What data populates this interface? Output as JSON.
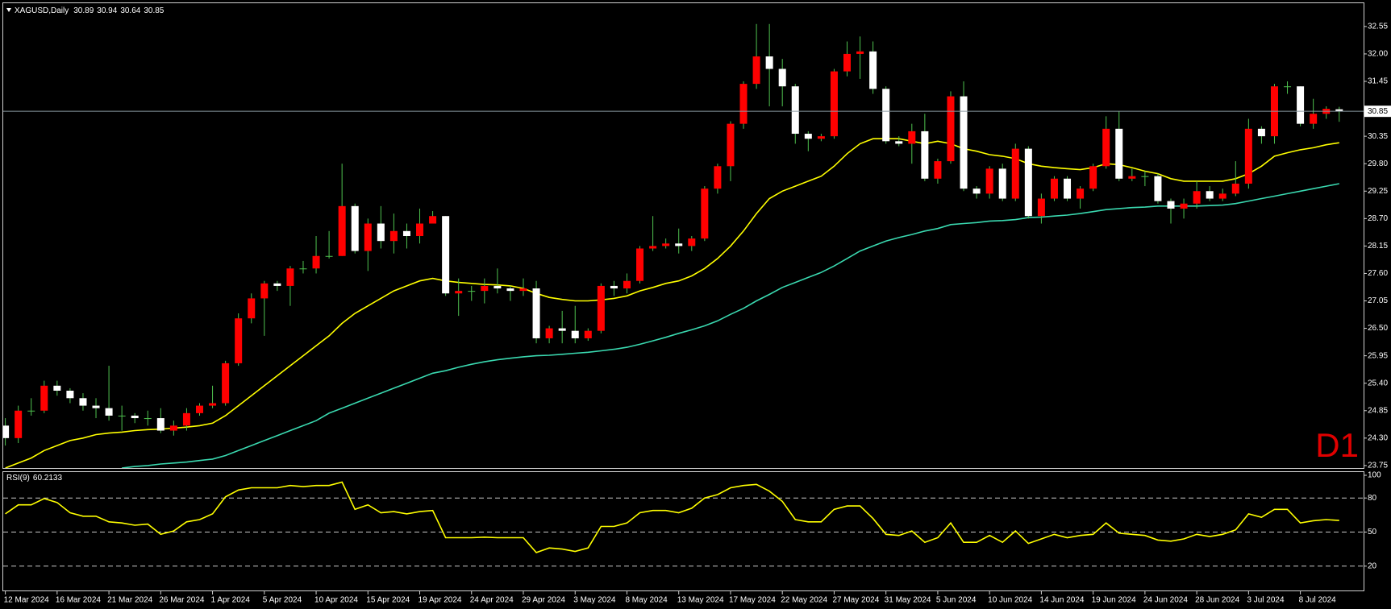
{
  "chart_data": [
    {
      "type": "candlestick",
      "title": "XAGUSD,Daily",
      "watermark": "D1",
      "categories": [
        "12 Mar 2024",
        null,
        null,
        null,
        "16 Mar 2024",
        null,
        null,
        null,
        "21 Mar 2024",
        null,
        null,
        null,
        "26 Mar 2024",
        null,
        null,
        null,
        "1 Apr 2024",
        null,
        null,
        null,
        "5 Apr 2024",
        null,
        null,
        null,
        "10 Apr 2024",
        null,
        null,
        null,
        "15 Apr 2024",
        null,
        null,
        null,
        "19 Apr 2024",
        null,
        null,
        null,
        "24 Apr 2024",
        null,
        null,
        null,
        "29 Apr 2024",
        null,
        null,
        null,
        "3 May 2024",
        null,
        null,
        null,
        "8 May 2024",
        null,
        null,
        null,
        "13 May 2024",
        null,
        null,
        null,
        "17 May 2024",
        null,
        null,
        null,
        "22 May 2024",
        null,
        null,
        null,
        "27 May 2024",
        null,
        null,
        null,
        "31 May 2024",
        null,
        null,
        null,
        "5 Jun 2024",
        null,
        null,
        null,
        "10 Jun 2024",
        null,
        null,
        null,
        "14 Jun 2024",
        null,
        null,
        null,
        "19 Jun 2024",
        null,
        null,
        null,
        "24 Jun 2024",
        null,
        null,
        null,
        "28 Jun 2024",
        null,
        null,
        null,
        "3 Jul 2024",
        null,
        null,
        null,
        "8 Jul 2024",
        null,
        null,
        null
      ],
      "open": [
        24.55,
        24.3,
        24.85,
        24.85,
        25.35,
        25.25,
        25.1,
        24.95,
        24.9,
        24.75,
        24.75,
        24.7,
        24.7,
        24.45,
        24.55,
        24.8,
        24.95,
        25.0,
        25.8,
        26.7,
        27.1,
        27.4,
        27.35,
        27.7,
        27.7,
        27.95,
        27.95,
        28.95,
        28.05,
        28.6,
        28.25,
        28.45,
        28.35,
        28.6,
        28.75,
        27.2,
        27.25,
        27.25,
        27.35,
        27.3,
        27.25,
        27.3,
        26.3,
        26.5,
        26.45,
        26.3,
        26.45,
        27.35,
        27.3,
        27.45,
        28.1,
        28.15,
        28.2,
        28.15,
        28.3,
        29.3,
        29.75,
        30.6,
        31.4,
        31.95,
        31.7,
        31.35,
        30.4,
        30.3,
        30.35,
        31.65,
        32.0,
        32.05,
        31.3,
        30.25,
        30.2,
        30.45,
        29.5,
        29.85,
        31.15,
        29.3,
        29.2,
        29.7,
        29.1,
        30.1,
        28.75,
        29.1,
        29.5,
        29.1,
        29.3,
        29.75,
        30.5,
        29.5,
        29.55,
        29.55,
        29.05,
        28.9,
        29.0,
        29.25,
        29.1,
        29.2,
        29.4,
        30.5,
        30.35,
        31.35,
        31.35,
        30.6,
        30.8,
        30.89
      ],
      "high": [
        24.7,
        24.95,
        25.1,
        25.45,
        25.45,
        25.3,
        25.2,
        25.1,
        25.75,
        24.95,
        24.8,
        24.85,
        24.9,
        24.65,
        24.9,
        25.0,
        25.35,
        25.85,
        26.8,
        27.2,
        27.45,
        27.45,
        27.75,
        27.85,
        28.35,
        28.45,
        29.8,
        29.0,
        28.7,
        28.95,
        28.8,
        28.6,
        28.9,
        28.85,
        28.75,
        27.5,
        27.35,
        27.5,
        27.7,
        27.35,
        27.5,
        27.45,
        26.55,
        26.85,
        26.95,
        26.5,
        27.4,
        27.45,
        27.6,
        28.15,
        28.75,
        28.3,
        28.5,
        28.35,
        29.35,
        29.8,
        30.65,
        31.45,
        32.6,
        32.6,
        31.9,
        31.4,
        30.45,
        30.4,
        31.7,
        32.25,
        32.35,
        32.25,
        31.35,
        30.35,
        30.6,
        30.8,
        29.9,
        31.25,
        31.45,
        29.35,
        29.75,
        29.8,
        30.2,
        30.15,
        29.2,
        29.55,
        29.55,
        29.35,
        29.8,
        30.75,
        30.85,
        29.7,
        29.65,
        29.6,
        29.1,
        29.1,
        29.45,
        29.35,
        29.3,
        29.85,
        30.7,
        30.55,
        31.4,
        31.45,
        31.35,
        31.1,
        30.95,
        30.94
      ],
      "low": [
        24.15,
        24.2,
        24.75,
        24.8,
        25.15,
        25.0,
        24.85,
        24.7,
        24.65,
        24.45,
        24.6,
        24.55,
        24.4,
        24.35,
        24.45,
        24.75,
        24.9,
        24.95,
        25.75,
        26.6,
        26.35,
        27.25,
        26.95,
        27.6,
        27.6,
        27.9,
        27.95,
        28.0,
        27.65,
        28.1,
        28.0,
        28.1,
        28.2,
        28.6,
        27.15,
        26.75,
        27.05,
        27.0,
        27.2,
        27.05,
        27.15,
        26.2,
        26.2,
        26.2,
        26.2,
        26.25,
        26.4,
        27.15,
        27.2,
        27.4,
        28.05,
        28.1,
        28.0,
        28.05,
        28.25,
        29.2,
        29.45,
        30.5,
        31.3,
        30.95,
        30.95,
        30.2,
        30.05,
        30.25,
        30.3,
        31.55,
        31.5,
        31.2,
        30.2,
        30.15,
        29.8,
        29.45,
        29.4,
        29.8,
        29.25,
        29.1,
        29.1,
        29.05,
        29.05,
        28.7,
        28.6,
        29.05,
        29.05,
        28.9,
        29.25,
        29.7,
        29.45,
        29.45,
        29.35,
        29.0,
        28.6,
        28.7,
        28.9,
        29.05,
        29.05,
        29.15,
        29.3,
        30.2,
        30.2,
        31.2,
        30.55,
        30.5,
        30.7,
        30.64
      ],
      "close": [
        24.3,
        24.85,
        24.85,
        25.35,
        25.25,
        25.1,
        24.95,
        24.9,
        24.75,
        24.75,
        24.7,
        24.7,
        24.45,
        24.55,
        24.8,
        24.95,
        25.0,
        25.8,
        26.7,
        27.1,
        27.4,
        27.35,
        27.7,
        27.7,
        27.95,
        27.95,
        28.95,
        28.05,
        28.6,
        28.25,
        28.45,
        28.35,
        28.6,
        28.75,
        27.2,
        27.25,
        27.25,
        27.35,
        27.3,
        27.25,
        27.3,
        26.3,
        26.5,
        26.45,
        26.3,
        26.45,
        27.35,
        27.3,
        27.45,
        28.1,
        28.15,
        28.2,
        28.15,
        28.3,
        29.3,
        29.75,
        30.6,
        31.4,
        31.95,
        31.7,
        31.35,
        30.4,
        30.3,
        30.35,
        31.65,
        32.0,
        32.05,
        31.3,
        30.25,
        30.2,
        30.45,
        29.5,
        29.85,
        31.15,
        29.3,
        29.2,
        29.7,
        29.1,
        30.1,
        28.75,
        29.1,
        29.5,
        29.1,
        29.3,
        29.75,
        30.5,
        29.5,
        29.55,
        29.55,
        29.05,
        28.9,
        29.0,
        29.25,
        29.1,
        29.2,
        29.4,
        30.5,
        30.35,
        31.35,
        31.35,
        30.6,
        30.8,
        30.9,
        30.85
      ],
      "up_color": "#ff0000",
      "down_color": "#ffffff",
      "wick_color": "#4fc24f",
      "series": [
        {
          "color": "#ffff00",
          "values": [
            23.7,
            23.8,
            23.9,
            24.05,
            24.15,
            24.25,
            24.3,
            24.37,
            24.4,
            24.42,
            24.45,
            24.47,
            24.48,
            24.5,
            24.52,
            24.55,
            24.6,
            24.75,
            24.95,
            25.15,
            25.35,
            25.55,
            25.75,
            25.95,
            26.15,
            26.35,
            26.6,
            26.8,
            26.95,
            27.1,
            27.25,
            27.35,
            27.45,
            27.5,
            27.45,
            27.42,
            27.4,
            27.38,
            27.37,
            27.35,
            27.3,
            27.2,
            27.12,
            27.08,
            27.05,
            27.05,
            27.07,
            27.1,
            27.15,
            27.25,
            27.32,
            27.4,
            27.45,
            27.55,
            27.7,
            27.9,
            28.15,
            28.45,
            28.8,
            29.1,
            29.25,
            29.35,
            29.45,
            29.55,
            29.75,
            30.0,
            30.2,
            30.3,
            30.3,
            30.3,
            30.25,
            30.2,
            30.25,
            30.2,
            30.1,
            30.05,
            29.98,
            29.95,
            29.9,
            29.8,
            29.75,
            29.72,
            29.7,
            29.68,
            29.72,
            29.8,
            29.78,
            29.72,
            29.65,
            29.6,
            29.5,
            29.45,
            29.45,
            29.45,
            29.45,
            29.5,
            29.6,
            29.75,
            29.95,
            30.02,
            30.08,
            30.12,
            30.18,
            30.22
          ]
        },
        {
          "color": "#3ad9b0",
          "values": [
            null,
            null,
            null,
            null,
            null,
            null,
            null,
            null,
            null,
            23.7,
            23.73,
            23.75,
            23.78,
            23.8,
            23.82,
            23.85,
            23.88,
            23.95,
            24.05,
            24.15,
            24.25,
            24.35,
            24.45,
            24.55,
            24.65,
            24.8,
            24.9,
            25.0,
            25.1,
            25.2,
            25.3,
            25.4,
            25.5,
            25.6,
            25.65,
            25.72,
            25.78,
            25.83,
            25.87,
            25.9,
            25.93,
            25.95,
            25.96,
            25.98,
            26.0,
            26.02,
            26.05,
            26.08,
            26.12,
            26.18,
            26.25,
            26.32,
            26.4,
            26.47,
            26.55,
            26.65,
            26.78,
            26.9,
            27.05,
            27.18,
            27.32,
            27.42,
            27.52,
            27.62,
            27.75,
            27.9,
            28.05,
            28.15,
            28.25,
            28.32,
            28.38,
            28.45,
            28.5,
            28.58,
            28.6,
            28.62,
            28.65,
            28.66,
            28.68,
            28.72,
            28.73,
            28.75,
            28.77,
            28.8,
            28.84,
            28.88,
            28.9,
            28.92,
            28.93,
            28.95,
            28.95,
            28.95,
            28.95,
            28.96,
            28.97,
            29.0,
            29.05,
            29.1,
            29.15,
            29.2,
            29.25,
            29.3,
            29.35,
            29.4
          ]
        }
      ],
      "ylim": [
        23.7,
        33.0
      ],
      "yticks": [
        23.75,
        {
          "value": 24.3,
          "label": "24.30"
        },
        24.85,
        {
          "value": 25.4,
          "label": "25.40"
        },
        25.95,
        {
          "value": 26.5,
          "label": "26.50"
        },
        27.05,
        {
          "value": 27.6,
          "label": "27.60"
        },
        28.15,
        {
          "value": 28.7,
          "label": "28.70"
        },
        29.25,
        {
          "value": 29.8,
          "label": "29.80"
        },
        30.35,
        31.45,
        {
          "value": 32.0,
          "label": "32.00"
        },
        32.55
      ],
      "grid": false,
      "price_line_color": "#8a9aa2"
    },
    {
      "type": "line",
      "title": "RSI(9)",
      "series": [
        {
          "color": "#ffff00",
          "values": [
            66,
            74,
            74,
            79.5,
            76,
            67,
            64,
            64,
            59,
            58,
            56,
            57,
            48,
            51,
            59,
            61,
            66,
            81,
            87,
            89,
            89,
            89,
            91,
            90,
            91,
            91,
            94,
            70,
            74,
            67,
            68,
            66,
            68,
            69,
            45,
            45,
            45,
            45.5,
            45,
            45,
            45,
            32,
            36,
            35,
            33,
            36,
            55,
            55,
            58,
            67,
            69,
            69,
            67,
            71,
            80,
            83,
            89,
            91,
            92,
            86,
            77,
            61,
            59,
            59,
            70,
            73,
            73,
            62,
            48,
            47,
            51,
            41,
            45,
            58,
            41,
            41,
            47,
            41,
            51,
            40,
            44,
            48,
            45,
            47,
            48,
            58,
            49,
            48,
            47,
            43,
            42,
            44,
            48,
            46,
            48,
            52,
            66,
            63,
            70,
            70,
            58,
            60,
            61,
            60.2133
          ]
        }
      ],
      "ylim": [
        0,
        100
      ],
      "yticks": [
        100,
        80,
        50,
        20
      ],
      "levels": [
        80,
        50,
        20
      ],
      "level_color": "#c8c8c8"
    }
  ]
}
